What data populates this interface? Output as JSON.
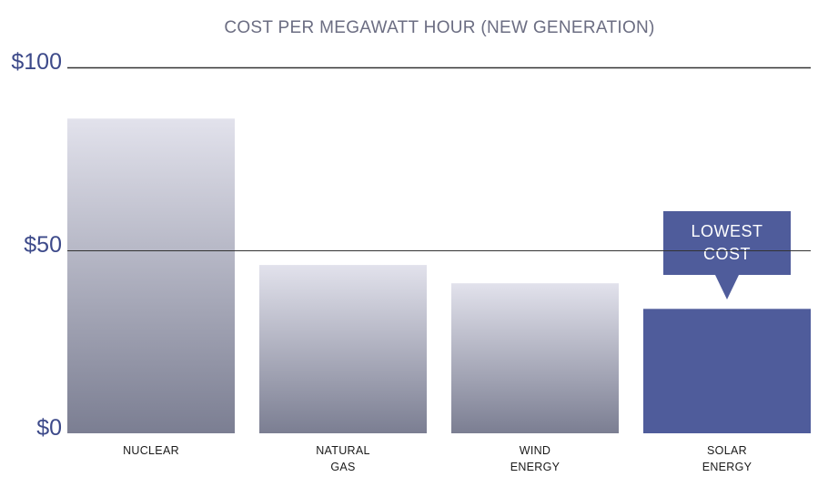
{
  "chart_data": {
    "type": "bar",
    "title": "COST PER MEGAWATT HOUR (NEW GENERATION)",
    "xlabel": "",
    "ylabel": "",
    "ylim": [
      0,
      100
    ],
    "y_ticks": [
      {
        "value": 0,
        "label": "$0"
      },
      {
        "value": 50,
        "label": "$50"
      },
      {
        "value": 100,
        "label": "$100"
      }
    ],
    "grid": true,
    "categories": [
      [
        "NUCLEAR"
      ],
      [
        "NATURAL",
        "GAS"
      ],
      [
        "WIND",
        "ENERGY"
      ],
      [
        "SOLAR",
        "ENERGY"
      ]
    ],
    "values": [
      86,
      46,
      41,
      34
    ],
    "highlight_index": 3,
    "annotation": {
      "lines": [
        "LOWEST",
        "COST"
      ],
      "target_index": 3
    },
    "colors": {
      "highlight": "#4f5c9b",
      "gradient_top": "#e2e2ec",
      "gradient_bottom": "#7b7e92",
      "tick_label": "#3d4a8a",
      "title": "#6b6d82",
      "gridline": "#333333"
    }
  }
}
